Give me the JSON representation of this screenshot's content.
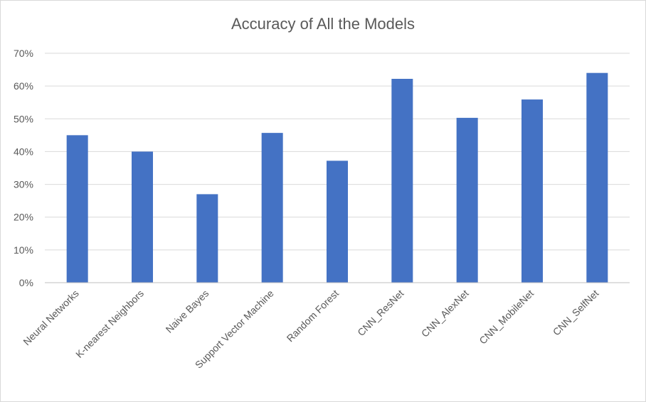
{
  "chart_data": {
    "type": "bar",
    "title": "Accuracy of All the Models",
    "xlabel": "",
    "ylabel": "",
    "categories": [
      "Neural Networks",
      "K-nearest Neighbors",
      "Naive Bayes",
      "Support Vector Machine",
      "Random Forest",
      "CNN_ResNet",
      "CNN_AlexNet",
      "CNN_MobileNet",
      "CNN_SelfNet"
    ],
    "values": [
      45.0,
      40.0,
      27.0,
      45.7,
      37.2,
      62.2,
      50.3,
      55.9,
      64.0
    ],
    "ylim": [
      0,
      70
    ],
    "yticks": [
      "0%",
      "10%",
      "20%",
      "30%",
      "40%",
      "50%",
      "60%",
      "70%"
    ],
    "ytick_values": [
      0,
      10,
      20,
      30,
      40,
      50,
      60,
      70
    ],
    "grid": true,
    "legend": "none",
    "bar_color": "#4472c4"
  }
}
